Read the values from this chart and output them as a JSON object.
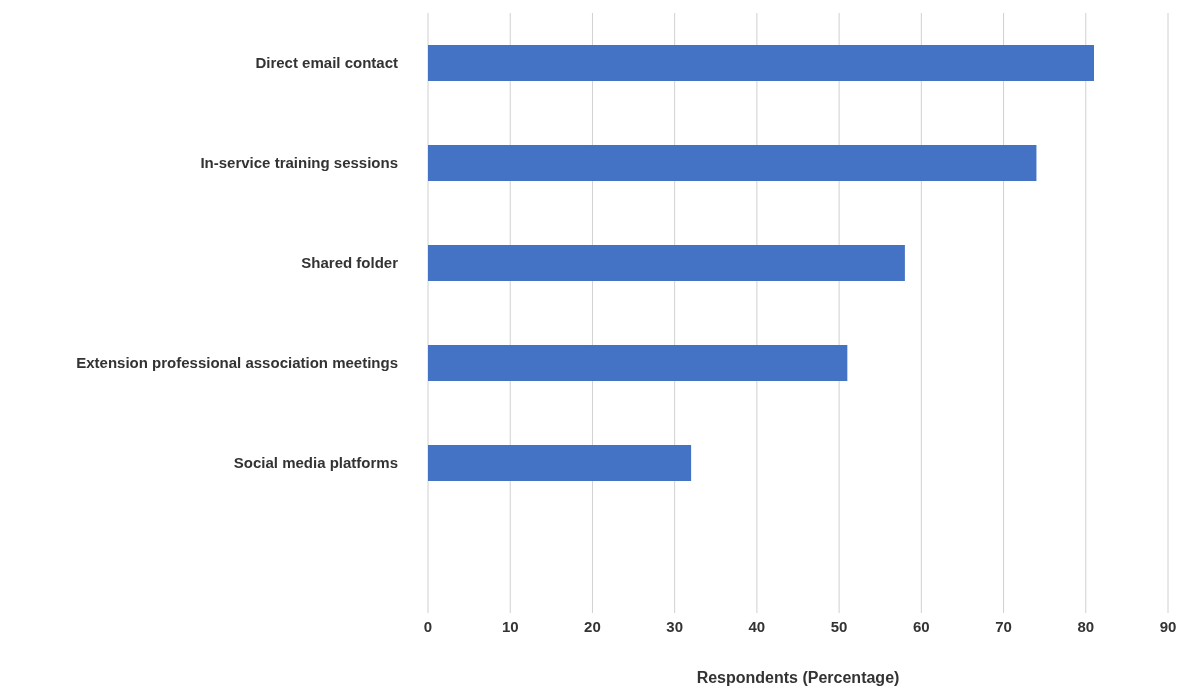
{
  "chart_data": {
    "type": "bar",
    "orientation": "horizontal",
    "xlabel": "Respondents (Percentage)",
    "categories": [
      "Direct email contact",
      "In-service training sessions",
      "Shared folder",
      "Extension professional association meetings",
      "Social media platforms",
      null
    ],
    "values": [
      81,
      74,
      58,
      51,
      32,
      null
    ],
    "color": "#4472c4",
    "xlim": [
      0,
      90
    ],
    "xticks": [
      0,
      10,
      20,
      30,
      40,
      50,
      60,
      70,
      80,
      90
    ],
    "grid": "x"
  }
}
